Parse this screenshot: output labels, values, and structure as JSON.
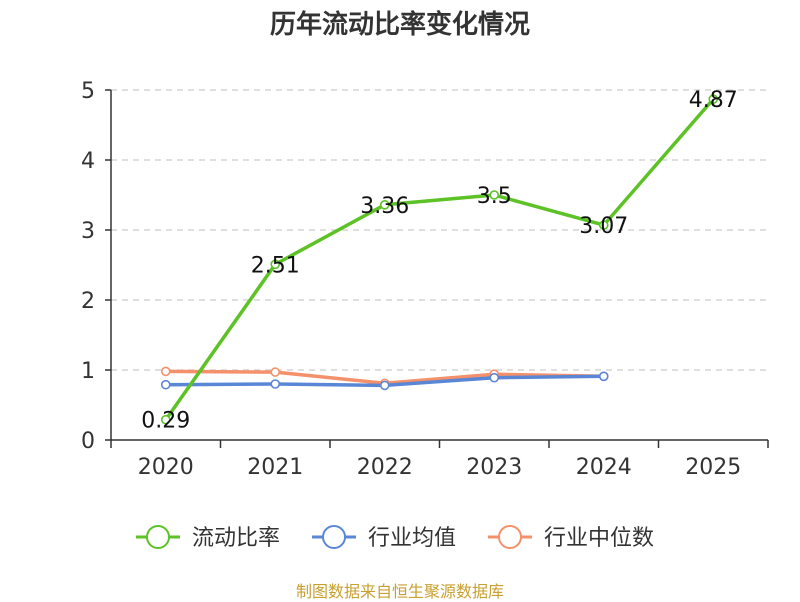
{
  "chart_data": {
    "type": "line",
    "title": "历年流动比率变化情况",
    "categories": [
      "2020",
      "2021",
      "2022",
      "2023",
      "2024",
      "2025"
    ],
    "ylim": [
      0,
      5
    ],
    "yticks": [
      0,
      1,
      2,
      3,
      4,
      5
    ],
    "grid": true,
    "legend_position": "bottom",
    "series": [
      {
        "name": "流动比率",
        "color": "#5cc226",
        "values": [
          0.29,
          2.51,
          3.36,
          3.5,
          3.07,
          4.87
        ],
        "labels": [
          "0.29",
          "2.51",
          "3.36",
          "3.5",
          "3.07",
          "4.87"
        ]
      },
      {
        "name": "行业均值",
        "color": "#5a86d6",
        "values": [
          0.79,
          0.8,
          0.78,
          0.89,
          0.91,
          null
        ]
      },
      {
        "name": "行业中位数",
        "color": "#f4916a",
        "values": [
          0.98,
          0.97,
          0.81,
          0.94,
          0.91,
          null
        ]
      }
    ]
  },
  "source_text": "制图数据来自恒生聚源数据库"
}
